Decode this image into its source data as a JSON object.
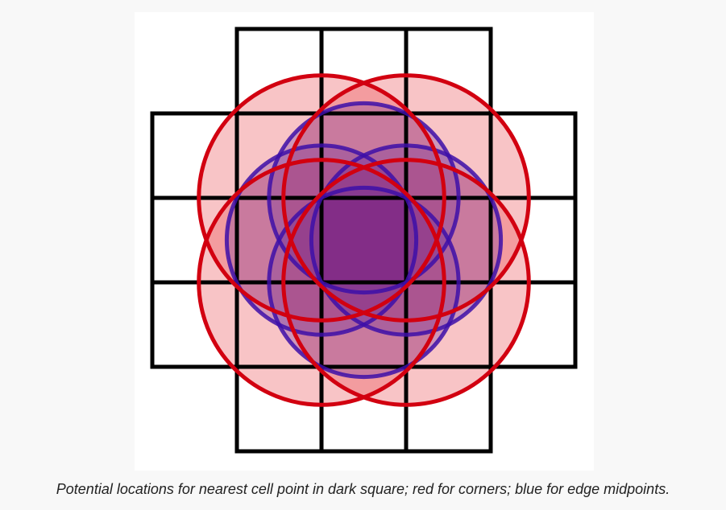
{
  "caption": "Potential locations for nearest cell point in dark square; red for corners; blue for edge midpoints.",
  "colors": {
    "page_background": "#f8f8f8",
    "panel_background": "#ffffff",
    "grid_line": "#000000",
    "dark_square": "#9a1035",
    "red_fill": "#e8474f",
    "red_stroke": "#d20010",
    "blue_fill": "#6a2a9a",
    "blue_stroke": "#3d0fa8"
  },
  "diagram": {
    "grid_cells": [
      [
        1,
        0
      ],
      [
        2,
        0
      ],
      [
        3,
        0
      ],
      [
        0,
        1
      ],
      [
        1,
        1
      ],
      [
        2,
        1
      ],
      [
        3,
        1
      ],
      [
        4,
        1
      ],
      [
        0,
        2
      ],
      [
        1,
        2
      ],
      [
        2,
        2
      ],
      [
        3,
        2
      ],
      [
        4,
        2
      ],
      [
        0,
        3
      ],
      [
        1,
        3
      ],
      [
        2,
        3
      ],
      [
        3,
        3
      ],
      [
        4,
        3
      ],
      [
        1,
        4
      ],
      [
        2,
        4
      ],
      [
        3,
        4
      ]
    ],
    "dark_cell": [
      2,
      2
    ],
    "corner_circles": [
      {
        "cx": 2,
        "cy": 2,
        "r": 1.45
      },
      {
        "cx": 3,
        "cy": 2,
        "r": 1.45
      },
      {
        "cx": 2,
        "cy": 3,
        "r": 1.45
      },
      {
        "cx": 3,
        "cy": 3,
        "r": 1.45
      }
    ],
    "midpoint_circles": [
      {
        "cx": 2.5,
        "cy": 2,
        "r": 1.12
      },
      {
        "cx": 3,
        "cy": 2.5,
        "r": 1.12
      },
      {
        "cx": 2.5,
        "cy": 3,
        "r": 1.12
      },
      {
        "cx": 2,
        "cy": 2.5,
        "r": 1.12
      }
    ]
  }
}
